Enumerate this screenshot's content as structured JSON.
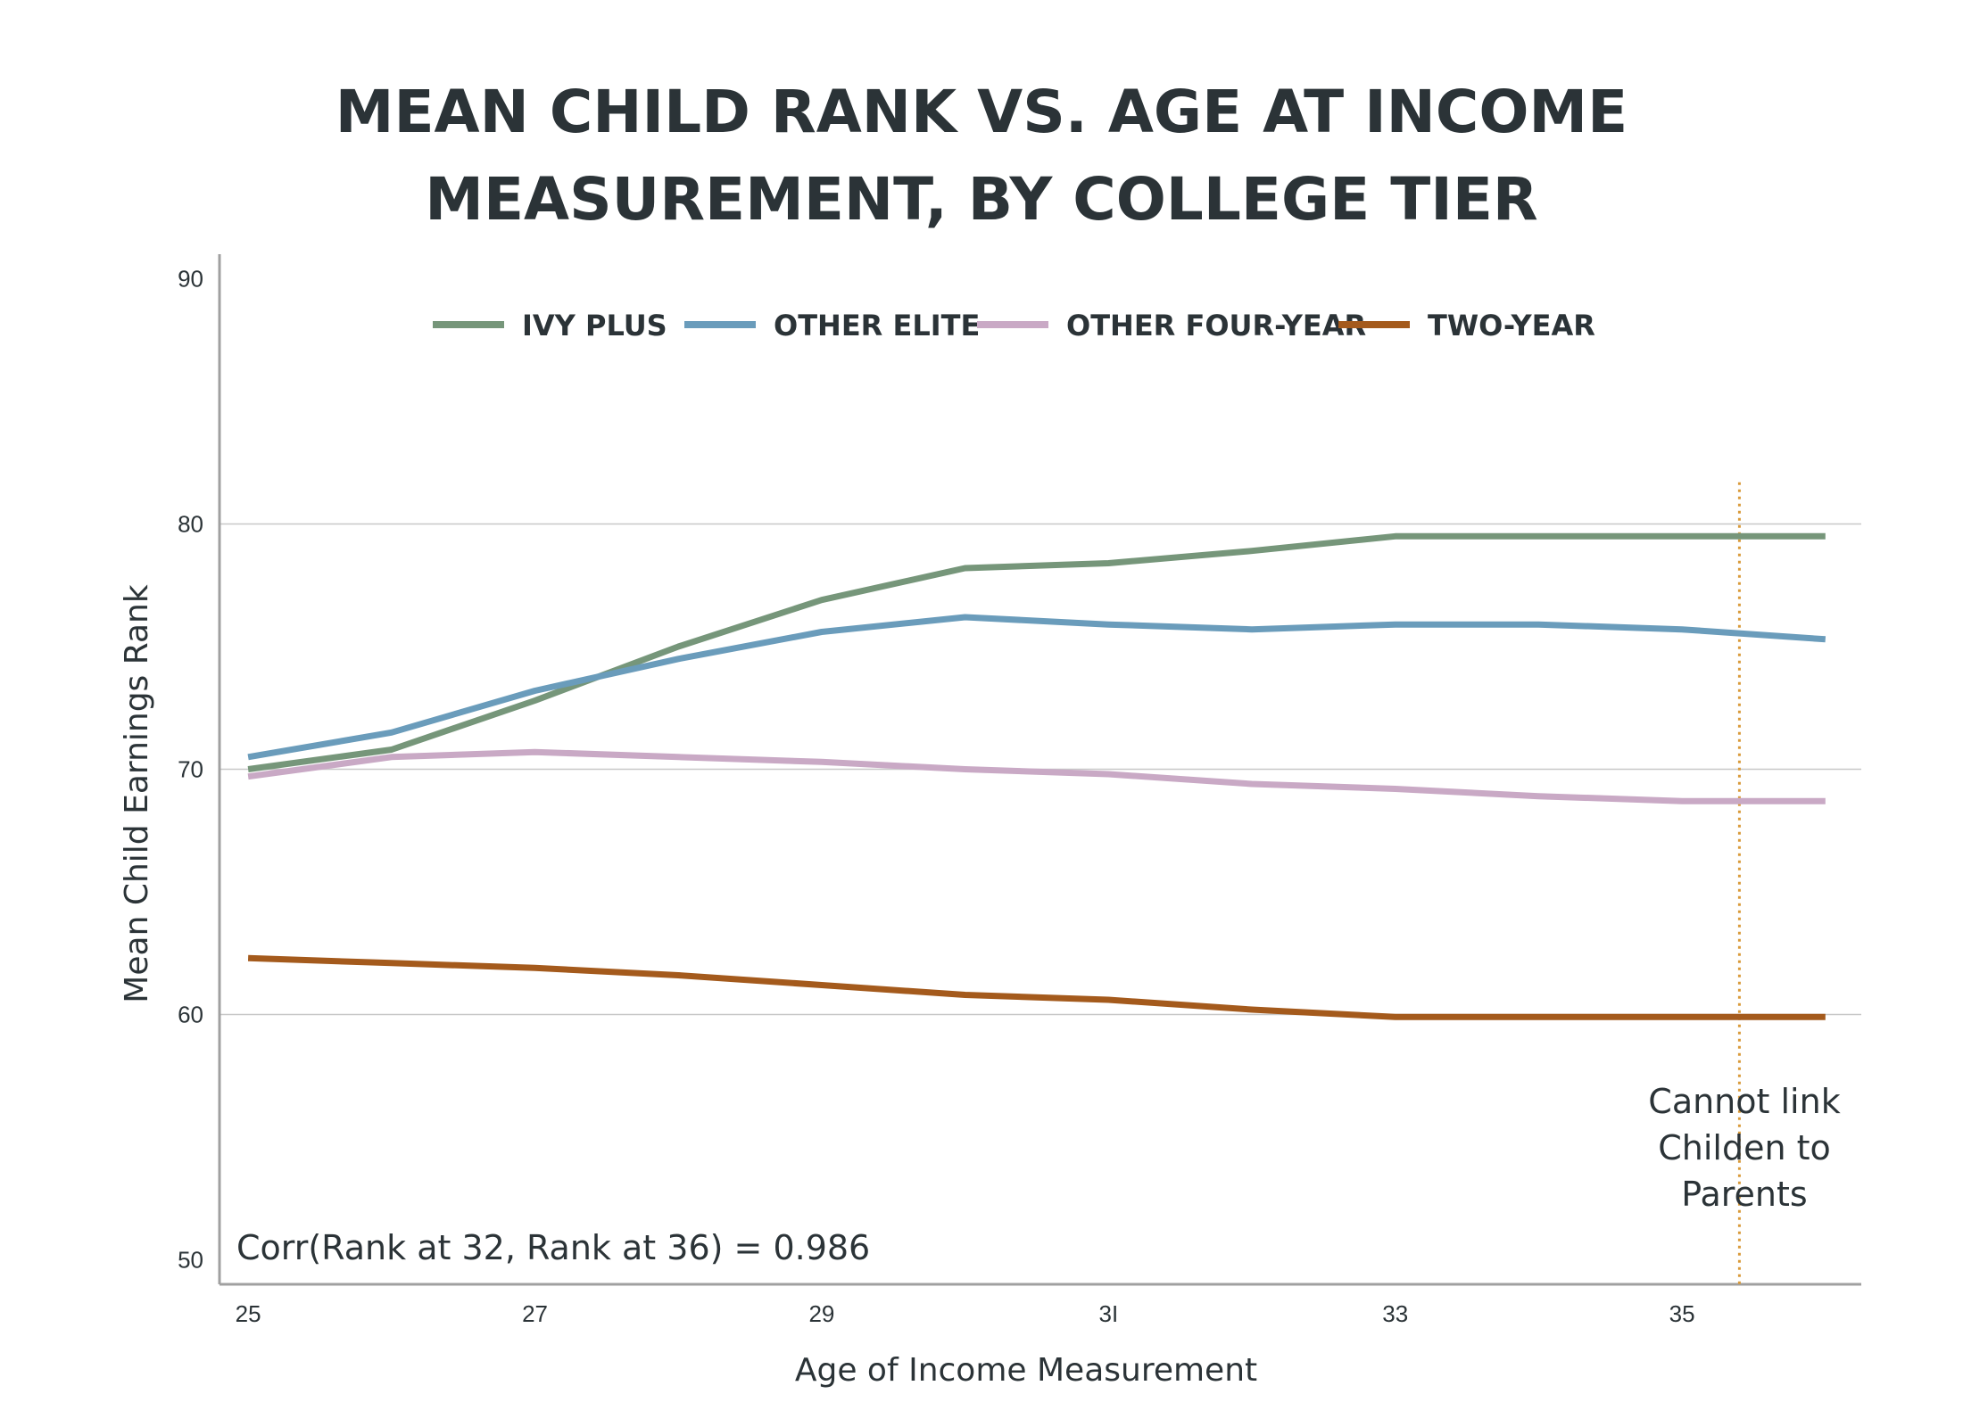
{
  "chart_data": {
    "type": "line",
    "title_lines": [
      "MEAN CHILD RANK VS. AGE AT INCOME",
      "MEASUREMENT, BY COLLEGE TIER"
    ],
    "xlabel": "Age of Income Measurement",
    "ylabel": "Mean Child Earnings Rank",
    "x": [
      25,
      26,
      27,
      28,
      29,
      30,
      31,
      32,
      33,
      34,
      35,
      36
    ],
    "xticks": [
      25,
      27,
      29,
      31,
      33,
      35
    ],
    "xtick_labels": [
      "25",
      "27",
      "29",
      "3I",
      "33",
      "35"
    ],
    "yticks": [
      50,
      60,
      70,
      80,
      90
    ],
    "ytick_labels": [
      "50",
      "60",
      "70",
      "80",
      "90"
    ],
    "xlim": [
      24.8,
      36.25
    ],
    "ylim": [
      49,
      91
    ],
    "grid_y": [
      60,
      70,
      80
    ],
    "legend_position": "top",
    "series": [
      {
        "name": "IVY PLUS",
        "color": "#76967a",
        "values": [
          70.0,
          70.8,
          72.8,
          75.0,
          76.9,
          78.2,
          78.4,
          78.9,
          79.5,
          79.5,
          79.5,
          79.5
        ]
      },
      {
        "name": "OTHER ELITE",
        "color": "#6a9cbb",
        "values": [
          70.5,
          71.5,
          73.2,
          74.5,
          75.6,
          76.2,
          75.9,
          75.7,
          75.9,
          75.9,
          75.7,
          75.3
        ]
      },
      {
        "name": "OTHER FOUR-YEAR",
        "color": "#c9a9c5",
        "values": [
          69.7,
          70.5,
          70.7,
          70.5,
          70.3,
          70.0,
          69.8,
          69.4,
          69.2,
          68.9,
          68.7,
          68.7
        ]
      },
      {
        "name": "TWO-YEAR",
        "color": "#a45a1c",
        "values": [
          62.3,
          62.1,
          61.9,
          61.6,
          61.2,
          60.8,
          60.6,
          60.2,
          59.9,
          59.9,
          59.9,
          59.9
        ]
      }
    ],
    "cutoff_line": {
      "x": 35.4,
      "y_top": 81.7,
      "color": "#d99a3a"
    },
    "cutoff_note_lines": [
      "Cannot link",
      "Childen to",
      "Parents"
    ],
    "corr_annotation": "Corr(Rank at 32, Rank at 36) = 0.986"
  }
}
